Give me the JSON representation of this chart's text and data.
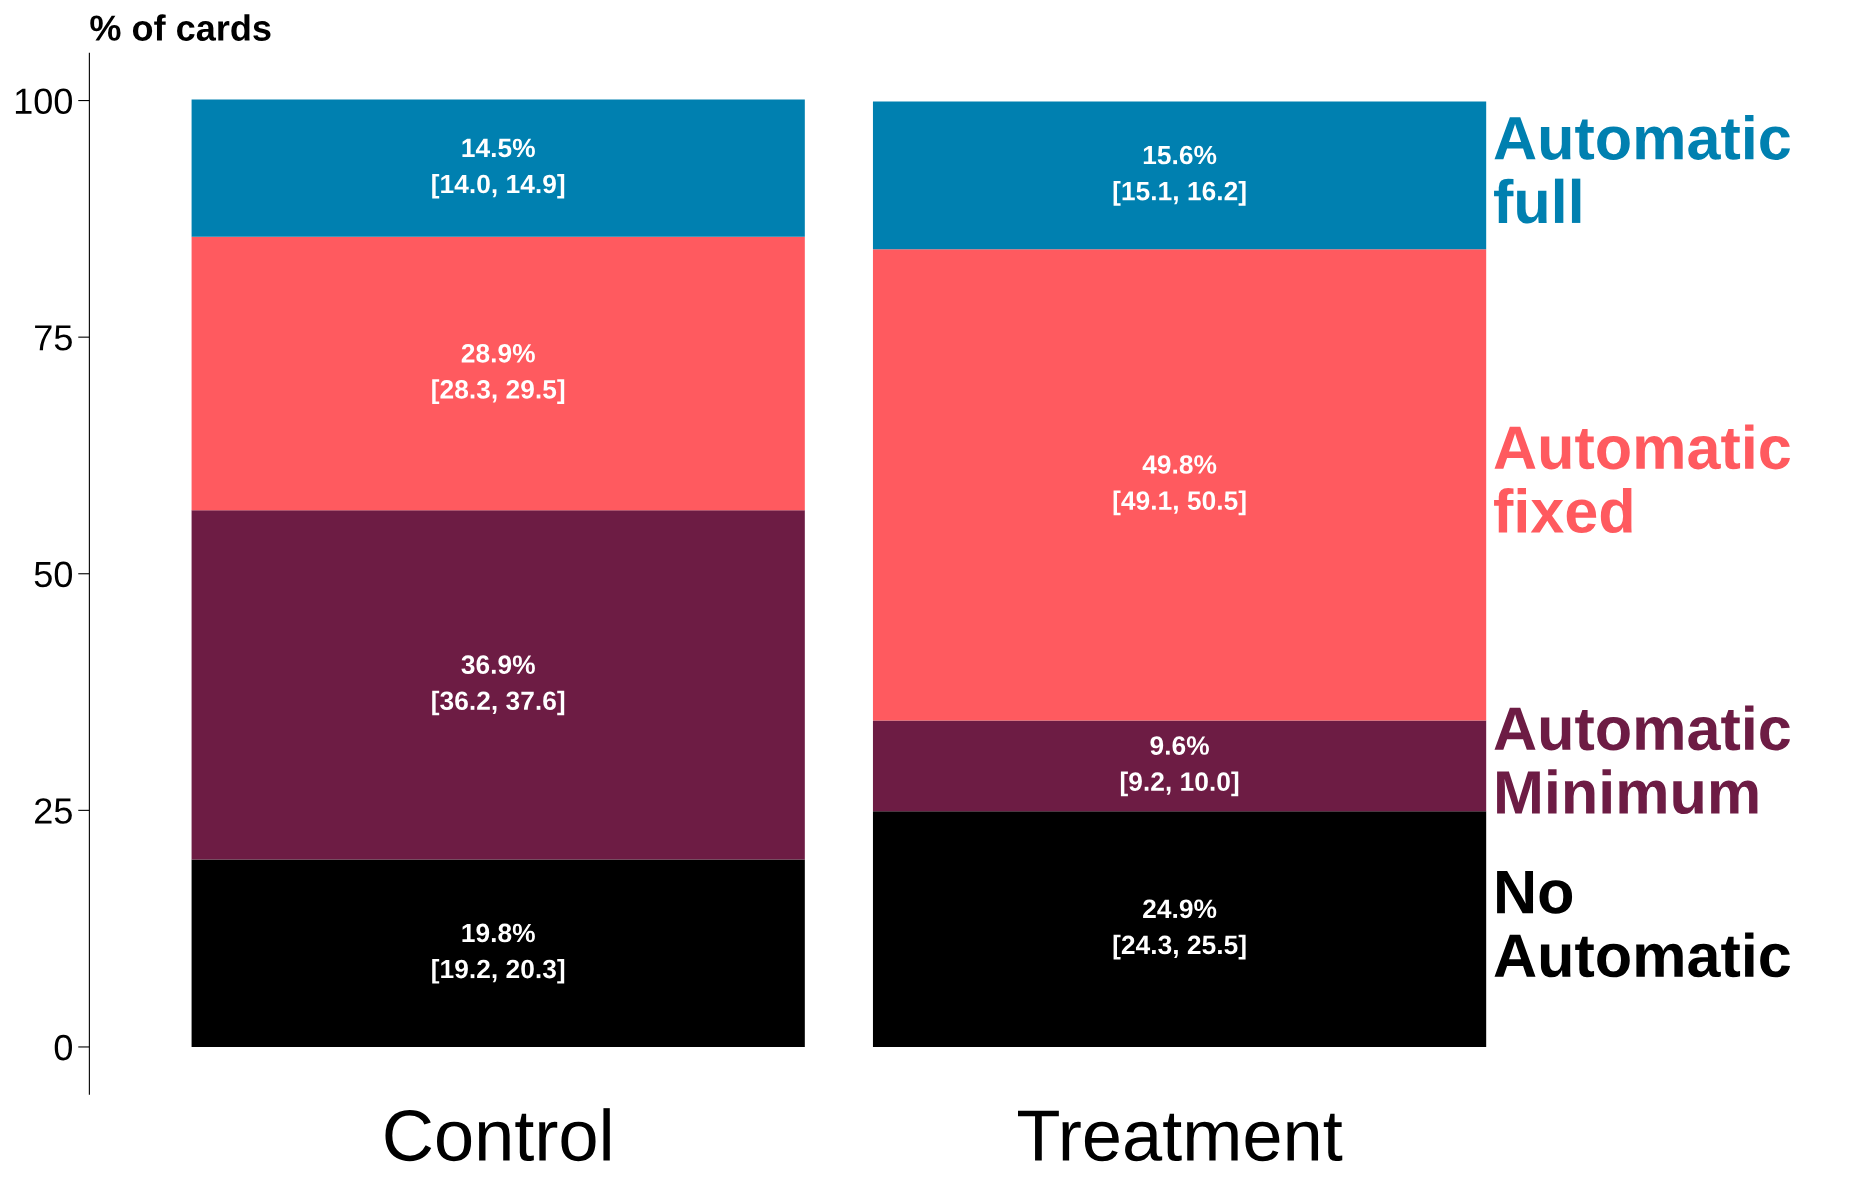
{
  "chart_data": {
    "type": "bar",
    "stacked": true,
    "ylabel": "% of cards",
    "categories": [
      "Control",
      "Treatment"
    ],
    "ylim": [
      -5,
      105
    ],
    "yticks": [
      0,
      25,
      50,
      75,
      100
    ],
    "grid": false,
    "legend": "right",
    "series": [
      {
        "name": "No Automatic",
        "color": "#000000",
        "values": [
          19.8,
          24.9
        ],
        "value_labels": [
          "19.8%\n[19.2, 20.3]",
          "24.9%\n[24.3, 25.5]"
        ]
      },
      {
        "name": "Automatic Minimum",
        "color": "#6d1c44",
        "values": [
          36.9,
          9.6
        ],
        "value_labels": [
          "36.9%\n[36.2, 37.6]",
          "9.6%\n[9.2, 10.0]"
        ]
      },
      {
        "name": "Automatic fixed",
        "color": "#ff5a5f",
        "values": [
          28.9,
          49.8
        ],
        "value_labels": [
          "28.9%\n[28.3, 29.5]",
          "49.8%\n[49.1, 50.5]"
        ]
      },
      {
        "name": "Automatic full",
        "color": "#0080b0",
        "values": [
          14.5,
          15.6
        ],
        "value_labels": [
          "14.5%\n[14.0, 14.9]",
          "15.6%\n[15.1, 16.2]"
        ]
      }
    ]
  }
}
